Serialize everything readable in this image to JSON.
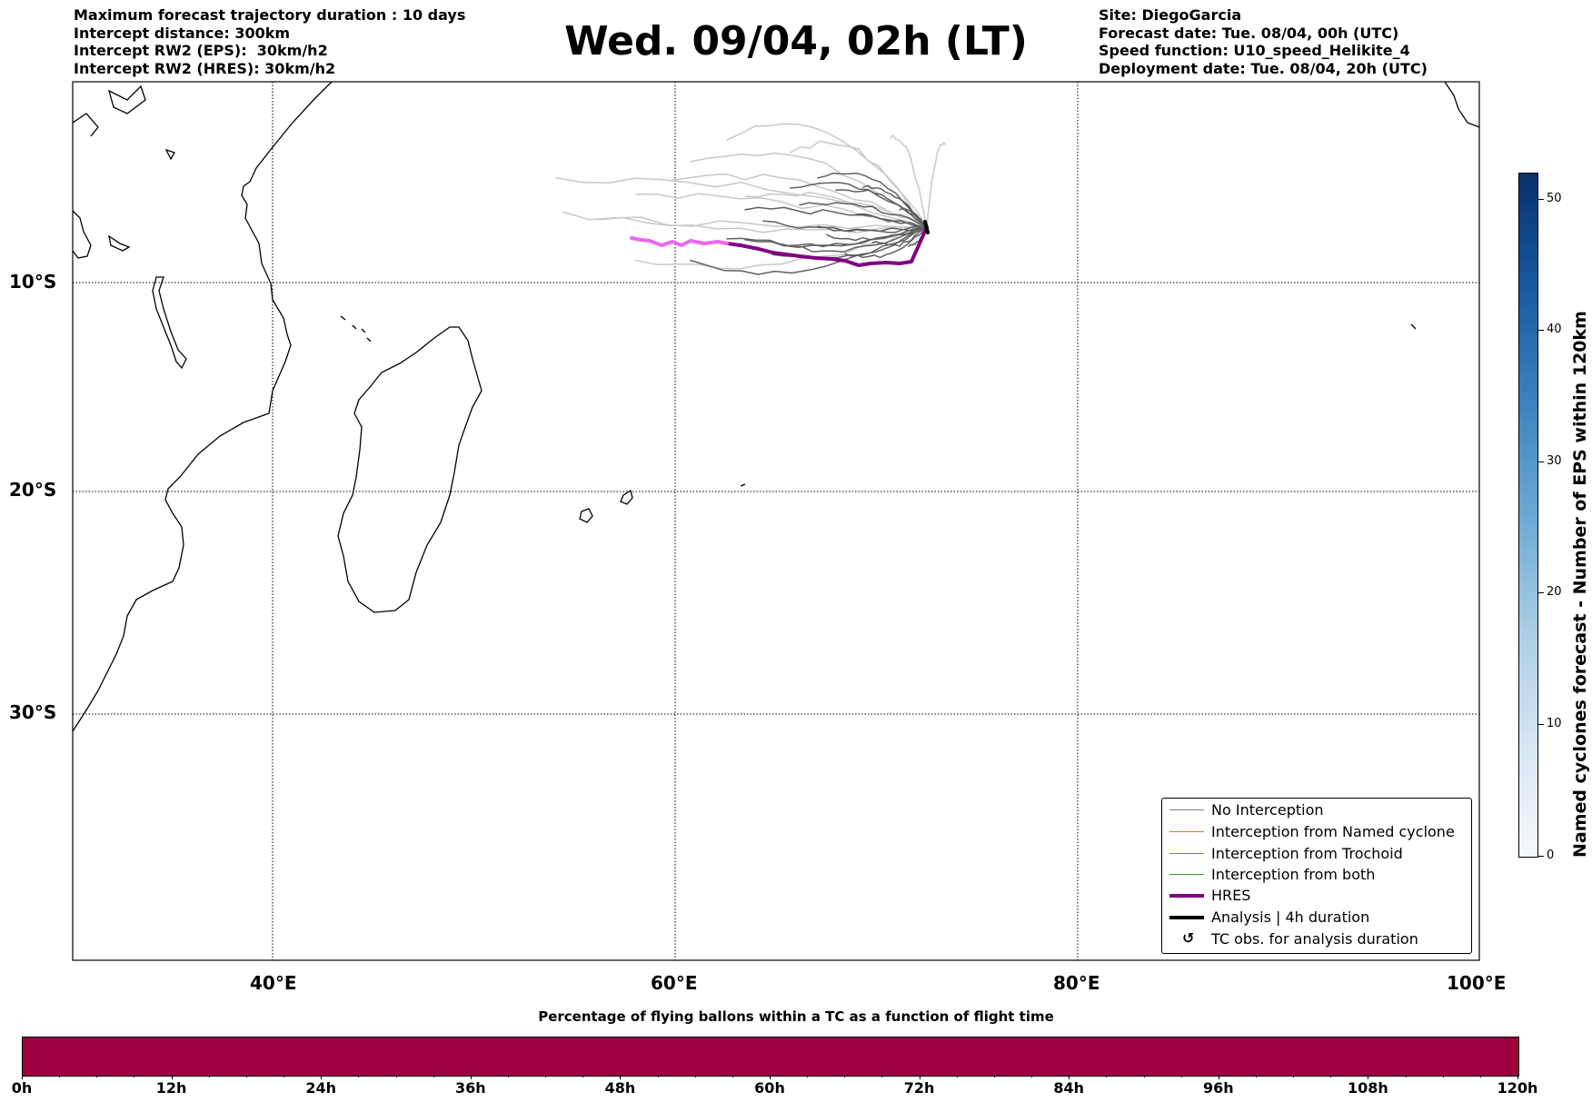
{
  "header_left": [
    "Maximum forecast trajectory duration : 10 days",
    "Intercept distance: 300km",
    "Intercept RW2 (EPS):  30km/h2",
    "Intercept RW2 (HRES): 30km/h2"
  ],
  "title": "Wed. 09/04, 02h (LT)",
  "header_right": [
    "Site: DiegoGarcia",
    "Forecast date: Tue. 08/04, 00h (UTC)",
    "Speed function: U10_speed_Helikite_4",
    "Deployment date: Tue. 08/04, 20h (UTC)"
  ],
  "map": {
    "lon_ticks": [
      "40°E",
      "60°E",
      "80°E",
      "100°E"
    ],
    "lat_ticks": [
      "10°S",
      "20°S",
      "30°S"
    ],
    "gridlines": true,
    "colors": {
      "no_interception": "#606060",
      "eps_light": "#c8c8c8",
      "hres": "#800080",
      "hres_recent": "#ee66ee",
      "analysis": "#000000"
    }
  },
  "legend": {
    "items": [
      {
        "label": "No Interception",
        "color": "#808080",
        "width": 1
      },
      {
        "label": "Interception from Named cyclone",
        "color": "#ff6a2a",
        "width": 1
      },
      {
        "label": "Interception from Trochoid",
        "color": "#8b8b1a",
        "width": 1
      },
      {
        "label": "Interception from both",
        "color": "#2ca02c",
        "width": 1
      },
      {
        "label": "HRES",
        "color": "#800080",
        "width": 4
      },
      {
        "label": "Analysis | 4h duration",
        "color": "#000000",
        "width": 4
      },
      {
        "label": "TC obs. for analysis duration",
        "symbol": "↺"
      }
    ],
    "placement": "lower-right"
  },
  "colorbar": {
    "label": "Named cyclones forecast - Number of EPS within 120km",
    "ticks": [
      "0",
      "10",
      "20",
      "30",
      "40",
      "50"
    ],
    "range": [
      0,
      52
    ]
  },
  "flight_bar": {
    "title": "Percentage of flying ballons within a TC as a function of flight time",
    "ticks": [
      "0h",
      "12h",
      "24h",
      "36h",
      "48h",
      "60h",
      "72h",
      "84h",
      "96h",
      "108h",
      "120h"
    ],
    "color": "#9d0040"
  }
}
